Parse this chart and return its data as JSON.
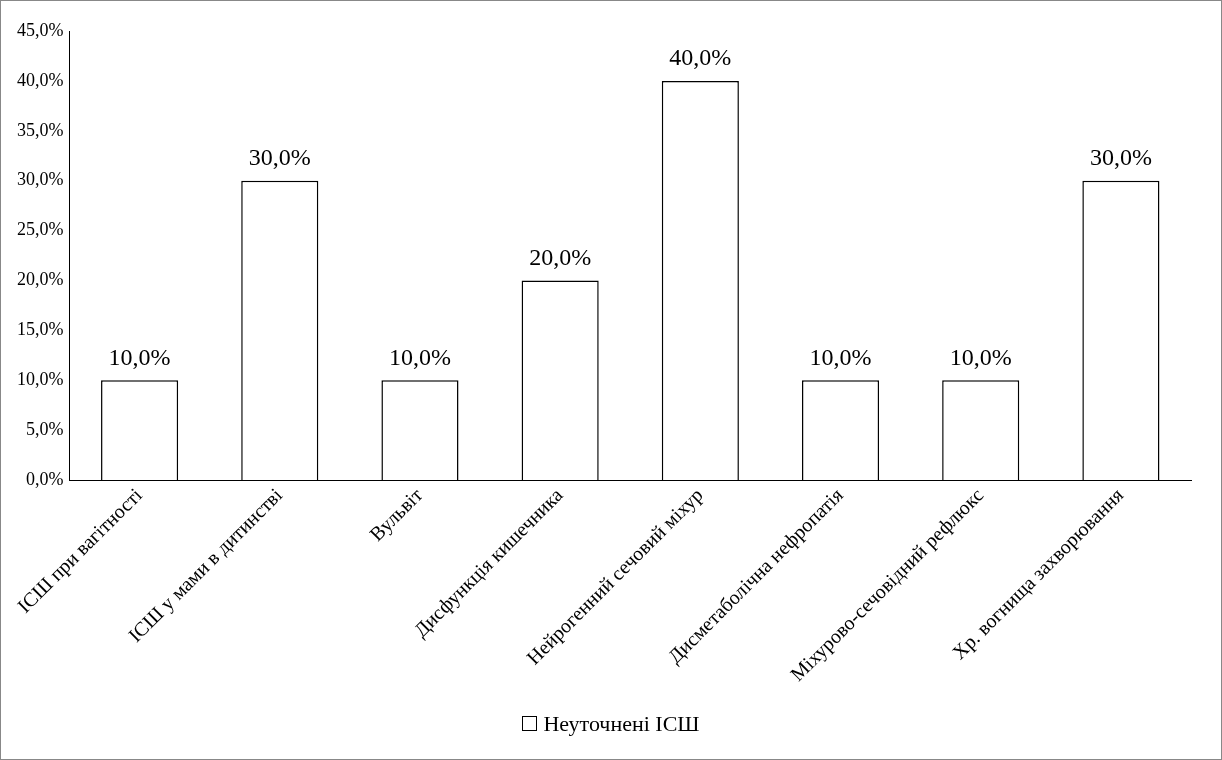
{
  "chart_data": {
    "type": "bar",
    "categories": [
      "ІСШ при вагітності",
      "ІСШ у мами в дитинстві",
      "Вульвіт",
      "Дисфункція кишечника",
      "Нейрогенний сечовий міхур",
      "Дисметаболічна нефропатія",
      "Міхурово-сечовідний рефлюкс",
      "Хр. вогнища захворювання"
    ],
    "series": [
      {
        "name": "Неуточнені ІСШ",
        "color": "#ffffff",
        "values": [
          10,
          30,
          10,
          20,
          40,
          10,
          10,
          30
        ],
        "value_labels": [
          "10,0%",
          "30,0%",
          "10,0%",
          "20,0%",
          "40,0%",
          "10,0%",
          "10,0%",
          "30,0%"
        ]
      }
    ],
    "ylim": [
      0,
      45
    ],
    "yticks": [
      {
        "value": 0,
        "label": "0,0%"
      },
      {
        "value": 5,
        "label": "5,0%"
      },
      {
        "value": 10,
        "label": "10,0%"
      },
      {
        "value": 15,
        "label": "15,0%"
      },
      {
        "value": 20,
        "label": "20,0%"
      },
      {
        "value": 25,
        "label": "25,0%"
      },
      {
        "value": 30,
        "label": "30,0%"
      },
      {
        "value": 35,
        "label": "35,0%"
      },
      {
        "value": 40,
        "label": "40,0%"
      },
      {
        "value": 45,
        "label": "45,0%"
      }
    ],
    "grid": false,
    "legend": "bottom"
  }
}
